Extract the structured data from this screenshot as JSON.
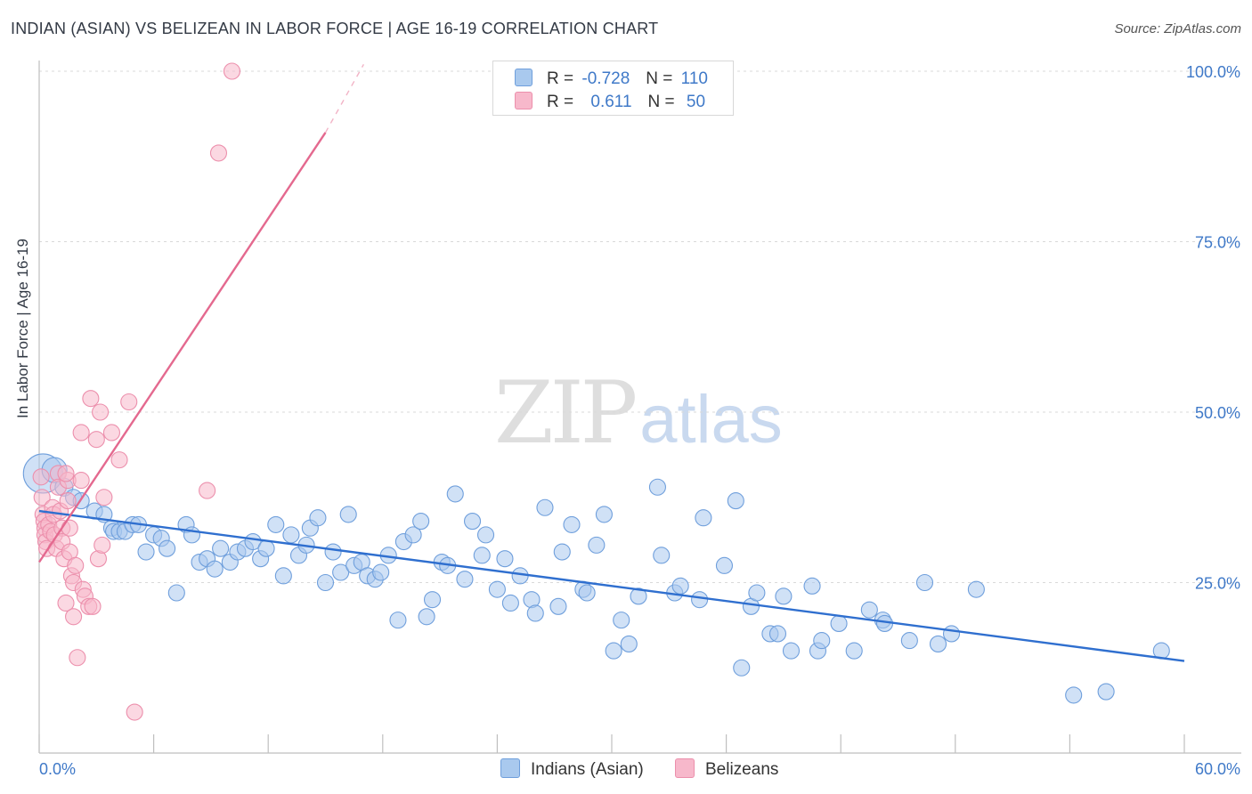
{
  "header": {
    "title": "INDIAN (ASIAN) VS BELIZEAN IN LABOR FORCE | AGE 16-19 CORRELATION CHART",
    "source": "Source: ZipAtlas.com"
  },
  "watermark": {
    "zip": "ZIP",
    "atlas": "atlas"
  },
  "legend": {
    "rows": [
      {
        "r_label": "R =",
        "r_value": "-0.728",
        "n_label": "N =",
        "n_value": "110",
        "color": "#a9c9ee"
      },
      {
        "r_label": "R =",
        "r_value": "0.611",
        "n_label": "N =",
        "n_value": "50",
        "color": "#f7b8cb"
      }
    ]
  },
  "bottom_legend": {
    "items": [
      {
        "label": "Indians (Asian)",
        "color": "#a9c9ee"
      },
      {
        "label": "Belizeans",
        "color": "#f7b8cb"
      }
    ]
  },
  "chart_data": {
    "type": "scatter",
    "title": "INDIAN (ASIAN) VS BELIZEAN IN LABOR FORCE | AGE 16-19 CORRELATION CHART",
    "xlabel": "",
    "ylabel": "In Labor Force | Age 16-19",
    "xlim": [
      0,
      60
    ],
    "ylim": [
      0,
      102
    ],
    "x_tick_labels": [
      {
        "value": 0,
        "label": "0.0%"
      },
      {
        "value": 60,
        "label": "60.0%"
      }
    ],
    "y_tick_labels": [
      {
        "value": 25,
        "label": "25.0%"
      },
      {
        "value": 50,
        "label": "50.0%"
      },
      {
        "value": 75,
        "label": "75.0%"
      },
      {
        "value": 100,
        "label": "100.0%"
      }
    ],
    "grid": "horizontal dashed",
    "legend_position": "top-center",
    "series": [
      {
        "name": "Indians (Asian)",
        "color": "#a9c9ee",
        "stroke": "#6f9fdc",
        "trend": {
          "x": [
            0,
            60
          ],
          "y": [
            35.5,
            13.5
          ],
          "color": "#2f6fcf"
        },
        "points": [
          [
            0.2,
            41,
            22
          ],
          [
            0.8,
            41.5,
            14
          ],
          [
            1.3,
            39,
            10
          ],
          [
            1.8,
            37.5,
            9
          ],
          [
            2.2,
            37,
            9
          ],
          [
            2.9,
            35.5,
            9
          ],
          [
            3.4,
            35,
            9
          ],
          [
            3.8,
            33,
            9
          ],
          [
            3.9,
            32.5,
            9
          ],
          [
            4.2,
            32.5,
            9
          ],
          [
            4.5,
            32.5,
            9
          ],
          [
            4.9,
            33.5,
            9
          ],
          [
            5.2,
            33.5,
            9
          ],
          [
            5.6,
            29.5,
            9
          ],
          [
            6.0,
            32,
            9
          ],
          [
            6.4,
            31.5,
            9
          ],
          [
            6.7,
            30,
            9
          ],
          [
            7.2,
            23.5,
            9
          ],
          [
            7.7,
            33.5,
            9
          ],
          [
            8.0,
            32,
            9
          ],
          [
            8.4,
            28,
            9
          ],
          [
            8.8,
            28.5,
            9
          ],
          [
            9.2,
            27,
            9
          ],
          [
            9.5,
            30,
            9
          ],
          [
            10.0,
            28,
            9
          ],
          [
            10.4,
            29.5,
            9
          ],
          [
            10.8,
            30,
            9
          ],
          [
            11.2,
            31,
            9
          ],
          [
            11.6,
            28.5,
            9
          ],
          [
            11.9,
            30,
            9
          ],
          [
            12.4,
            33.5,
            9
          ],
          [
            12.8,
            26,
            9
          ],
          [
            13.2,
            32,
            9
          ],
          [
            13.6,
            29,
            9
          ],
          [
            14.0,
            30.5,
            9
          ],
          [
            14.2,
            33,
            9
          ],
          [
            14.6,
            34.5,
            9
          ],
          [
            15.0,
            25,
            9
          ],
          [
            15.4,
            29.5,
            9
          ],
          [
            15.8,
            26.5,
            9
          ],
          [
            16.2,
            35,
            9
          ],
          [
            16.5,
            27.5,
            9
          ],
          [
            16.9,
            28,
            9
          ],
          [
            17.2,
            26,
            9
          ],
          [
            17.6,
            25.5,
            9
          ],
          [
            17.9,
            26.5,
            9
          ],
          [
            18.3,
            29,
            9
          ],
          [
            18.8,
            19.5,
            9
          ],
          [
            19.1,
            31,
            9
          ],
          [
            19.6,
            32,
            9
          ],
          [
            20.0,
            34,
            9
          ],
          [
            20.3,
            20,
            9
          ],
          [
            20.6,
            22.5,
            9
          ],
          [
            21.1,
            28,
            9
          ],
          [
            21.4,
            27.5,
            9
          ],
          [
            21.8,
            38,
            9
          ],
          [
            22.3,
            25.5,
            9
          ],
          [
            22.7,
            34,
            9
          ],
          [
            23.2,
            29,
            9
          ],
          [
            23.4,
            32,
            9
          ],
          [
            24.0,
            24,
            9
          ],
          [
            24.4,
            28.5,
            9
          ],
          [
            24.7,
            22,
            9
          ],
          [
            25.2,
            26,
            9
          ],
          [
            25.8,
            22.5,
            9
          ],
          [
            26.0,
            20.5,
            9
          ],
          [
            26.5,
            36,
            9
          ],
          [
            27.2,
            21.5,
            9
          ],
          [
            27.4,
            29.5,
            9
          ],
          [
            27.9,
            33.5,
            9
          ],
          [
            28.5,
            24,
            9
          ],
          [
            28.7,
            23.5,
            9
          ],
          [
            29.2,
            30.5,
            9
          ],
          [
            29.6,
            35,
            9
          ],
          [
            30.1,
            15,
            9
          ],
          [
            30.5,
            19.5,
            9
          ],
          [
            30.9,
            16,
            9
          ],
          [
            31.4,
            23,
            9
          ],
          [
            32.4,
            39,
            9
          ],
          [
            32.6,
            29,
            9
          ],
          [
            33.3,
            23.5,
            9
          ],
          [
            33.6,
            24.5,
            9
          ],
          [
            34.6,
            22.5,
            9
          ],
          [
            34.8,
            34.5,
            9
          ],
          [
            35.9,
            27.5,
            9
          ],
          [
            36.5,
            37,
            9
          ],
          [
            36.8,
            12.5,
            9
          ],
          [
            37.3,
            21.5,
            9
          ],
          [
            37.6,
            23.5,
            9
          ],
          [
            38.3,
            17.5,
            9
          ],
          [
            38.7,
            17.5,
            9
          ],
          [
            39.0,
            23,
            9
          ],
          [
            39.4,
            15,
            9
          ],
          [
            40.5,
            24.5,
            9
          ],
          [
            40.8,
            15,
            9
          ],
          [
            41.0,
            16.5,
            9
          ],
          [
            41.9,
            19,
            9
          ],
          [
            42.7,
            15,
            9
          ],
          [
            43.5,
            21,
            9
          ],
          [
            44.2,
            19.5,
            9
          ],
          [
            44.3,
            19,
            9
          ],
          [
            45.6,
            16.5,
            9
          ],
          [
            46.4,
            25,
            9
          ],
          [
            47.1,
            16,
            9
          ],
          [
            47.8,
            17.5,
            9
          ],
          [
            49.1,
            24,
            9
          ],
          [
            54.2,
            8.5,
            9
          ],
          [
            55.9,
            9,
            9
          ],
          [
            58.8,
            15,
            9
          ]
        ]
      },
      {
        "name": "Belizeans",
        "color": "#f7b8cb",
        "stroke": "#ec8fac",
        "trend": {
          "x": [
            0,
            15.0
          ],
          "y": [
            28,
            91
          ],
          "color": "#e4698f",
          "dashed_to": [
            17.0,
            101
          ]
        },
        "points": [
          [
            0.1,
            40.5,
            9
          ],
          [
            0.15,
            37.5,
            9
          ],
          [
            0.2,
            35,
            9
          ],
          [
            0.25,
            34,
            9
          ],
          [
            0.3,
            33,
            9
          ],
          [
            0.3,
            32,
            9
          ],
          [
            0.35,
            31,
            9
          ],
          [
            0.4,
            30,
            9
          ],
          [
            0.5,
            33.5,
            9
          ],
          [
            0.6,
            32.5,
            9
          ],
          [
            0.7,
            36,
            9
          ],
          [
            0.75,
            35,
            9
          ],
          [
            0.8,
            32,
            9
          ],
          [
            0.9,
            30,
            9
          ],
          [
            1.0,
            41,
            9
          ],
          [
            1.0,
            39,
            9
          ],
          [
            1.1,
            35.5,
            9
          ],
          [
            1.2,
            33,
            9
          ],
          [
            1.2,
            31,
            9
          ],
          [
            1.3,
            28.5,
            9
          ],
          [
            1.4,
            22,
            9
          ],
          [
            1.5,
            40,
            9
          ],
          [
            1.5,
            37,
            9
          ],
          [
            1.6,
            33,
            9
          ],
          [
            1.6,
            29.5,
            9
          ],
          [
            1.7,
            26,
            9
          ],
          [
            1.8,
            25,
            9
          ],
          [
            1.8,
            20,
            9
          ],
          [
            1.9,
            27.5,
            9
          ],
          [
            2.0,
            14,
            9
          ],
          [
            2.2,
            47,
            9
          ],
          [
            2.3,
            24,
            9
          ],
          [
            2.4,
            23,
            9
          ],
          [
            2.6,
            21.5,
            9
          ],
          [
            2.8,
            21.5,
            9
          ],
          [
            2.7,
            52,
            9
          ],
          [
            3.0,
            46,
            9
          ],
          [
            3.2,
            50,
            9
          ],
          [
            2.2,
            40,
            9
          ],
          [
            1.4,
            41,
            9
          ],
          [
            3.1,
            28.5,
            9
          ],
          [
            3.3,
            30.5,
            9
          ],
          [
            3.4,
            37.5,
            9
          ],
          [
            3.8,
            47,
            9
          ],
          [
            4.2,
            43,
            9
          ],
          [
            4.7,
            51.5,
            9
          ],
          [
            5.0,
            6,
            9
          ],
          [
            8.8,
            38.5,
            9
          ],
          [
            9.4,
            88,
            9
          ],
          [
            10.1,
            100,
            9
          ]
        ]
      }
    ]
  }
}
